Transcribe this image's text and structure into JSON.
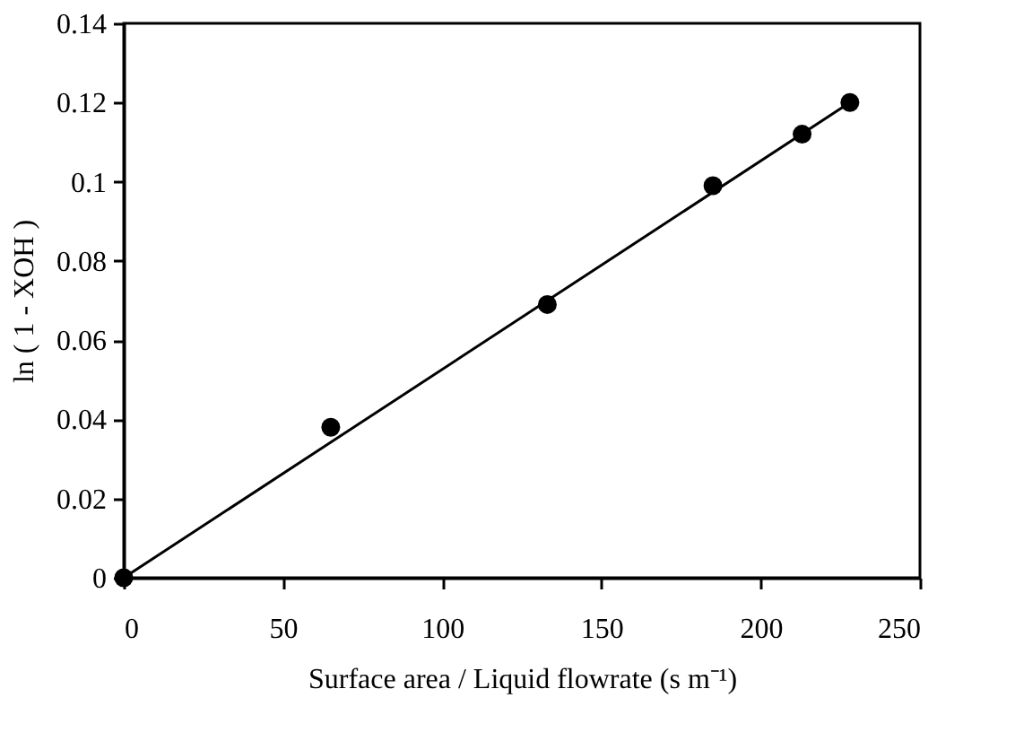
{
  "chart_data": {
    "type": "scatter",
    "xlabel": "Surface area  /  Liquid flowrate   (s m⁻¹)",
    "ylabel": "ln ( 1 - XOH )",
    "xlim": [
      0,
      250
    ],
    "xticks": [
      0,
      50,
      100,
      150,
      200,
      250
    ],
    "ylim": [
      0,
      0.14
    ],
    "yticks": [
      0,
      0.02,
      0.04,
      0.06,
      0.08,
      0.1,
      0.12,
      0.14
    ],
    "grid": false,
    "marker": "circle",
    "series": [
      {
        "color": "#000000",
        "x": [
          0,
          65,
          133,
          185,
          213,
          228
        ],
        "values": [
          0,
          0.038,
          0.069,
          0.099,
          0.112,
          0.12
        ]
      },
      {
        "type": "line",
        "color": "#000000",
        "x": [
          0,
          228
        ],
        "values": [
          0,
          0.12
        ],
        "line_style": "solid",
        "marker": "none"
      }
    ]
  }
}
